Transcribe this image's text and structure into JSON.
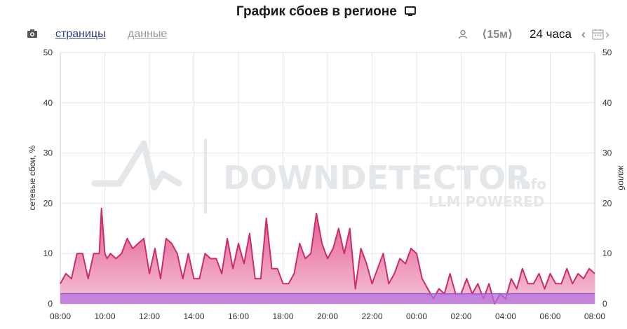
{
  "header": {
    "title": "График сбоев в регионе",
    "monitor_icon": "monitor-icon"
  },
  "toolbar": {
    "screenshot_icon": "camera-icon",
    "tab_pages": "страницы",
    "tab_data": "данные",
    "user_icon": "user-icon",
    "interval": "⟨15м⟩",
    "range": "24 часа",
    "prev_icon": "chevron-left-icon",
    "calendar_icon": "calendar-icon",
    "next_icon": "chevron-right-icon"
  },
  "watermark": {
    "brand": "DOWNDETECTOR",
    "suffix": ".info",
    "tagline": "LLM POWERED"
  },
  "colors": {
    "line": "#cc2c6a",
    "fill_top": "#e2578f",
    "fill_bottom": "#f6c4d8",
    "baseline_fill": "#b46fe0",
    "baseline_line": "#9b59d0",
    "grid": "#e5e5e5"
  },
  "chart_data": {
    "type": "area",
    "title": "",
    "ylabel": "сетевые сбои, %",
    "y2label": "жалоб",
    "ylim": [
      0,
      50
    ],
    "y_ticks": [
      "0",
      "10",
      "20",
      "30",
      "40",
      "50"
    ],
    "y2_ticks": [
      "0",
      "10",
      "20",
      "30",
      "40",
      "50"
    ],
    "x_ticks": [
      "08:00",
      "10:00",
      "12:00",
      "14:00",
      "16:00",
      "18:00",
      "20:00",
      "22:00",
      "00:00",
      "02:00",
      "04:00",
      "06:00",
      "08:00"
    ],
    "x_hours": [
      0,
      0.25,
      0.5,
      0.75,
      0.85,
      1.0,
      1.25,
      1.5,
      1.75,
      1.85,
      2.0,
      2.1,
      2.25,
      2.5,
      2.75,
      3.0,
      3.25,
      3.5,
      3.75,
      4.0,
      4.25,
      4.5,
      4.75,
      5.0,
      5.25,
      5.5,
      5.75,
      6.0,
      6.25,
      6.5,
      6.75,
      7.0,
      7.25,
      7.5,
      7.75,
      8.0,
      8.25,
      8.5,
      8.75,
      9.0,
      9.25,
      9.5,
      9.75,
      10.0,
      10.25,
      10.5,
      10.75,
      11.0,
      11.25,
      11.5,
      11.75,
      12.0,
      12.25,
      12.5,
      12.75,
      13.0,
      13.25,
      13.5,
      13.75,
      14.0,
      14.25,
      14.5,
      14.75,
      15.0,
      15.25,
      15.5,
      15.75,
      16.0,
      16.25,
      16.5,
      16.75,
      17.0,
      17.25,
      17.5,
      17.75,
      18.0,
      18.25,
      18.5,
      18.75,
      19.0,
      19.25,
      19.5,
      19.75,
      20.0,
      20.25,
      20.5,
      20.75,
      21.0,
      21.25,
      21.5,
      21.75,
      22.0,
      22.25,
      22.5,
      22.75,
      23.0,
      23.25,
      23.5,
      23.75,
      24.0
    ],
    "series": [
      {
        "values": [
          4,
          6,
          5,
          10,
          10,
          10,
          5,
          10,
          10,
          19,
          10,
          9,
          10,
          9,
          10,
          13,
          11,
          12,
          13,
          6,
          11,
          5,
          13,
          12,
          10,
          5,
          10,
          5,
          5,
          10,
          9,
          9,
          6,
          13,
          7,
          12,
          8,
          14,
          5,
          5,
          17,
          7,
          7,
          4,
          4,
          6,
          12,
          9,
          10,
          18,
          12,
          9,
          11,
          15,
          10,
          15,
          3,
          11,
          8,
          4,
          7,
          10,
          4,
          6,
          9,
          8,
          11,
          10,
          5,
          3,
          1,
          3,
          2,
          6,
          2,
          2,
          5,
          2,
          4,
          1,
          4,
          0,
          2,
          1,
          5,
          3,
          7,
          4,
          4,
          6,
          3,
          6,
          4,
          4,
          7,
          4,
          6,
          5,
          7,
          6
        ]
      },
      {
        "values": [
          2,
          2,
          2,
          2,
          2,
          2,
          2,
          2,
          2,
          2,
          2,
          2,
          2,
          2,
          2,
          2,
          2,
          2,
          2,
          2,
          2,
          2,
          2,
          2,
          2,
          2,
          2,
          2,
          2,
          2,
          2,
          2,
          2,
          2,
          2,
          2,
          2,
          2,
          2,
          2,
          2,
          2,
          2,
          2,
          2,
          2,
          2,
          2,
          2,
          2,
          2,
          2,
          2,
          2,
          2,
          2,
          2,
          2,
          2,
          2,
          2,
          2,
          2,
          2,
          2,
          2,
          2,
          2,
          2,
          2,
          2,
          2,
          2,
          2,
          2,
          2,
          2,
          2,
          2,
          2,
          2,
          2,
          2,
          2,
          2,
          2,
          2,
          2,
          2,
          2,
          2,
          2,
          2,
          2,
          2,
          2,
          2,
          2,
          2,
          2
        ]
      }
    ]
  }
}
